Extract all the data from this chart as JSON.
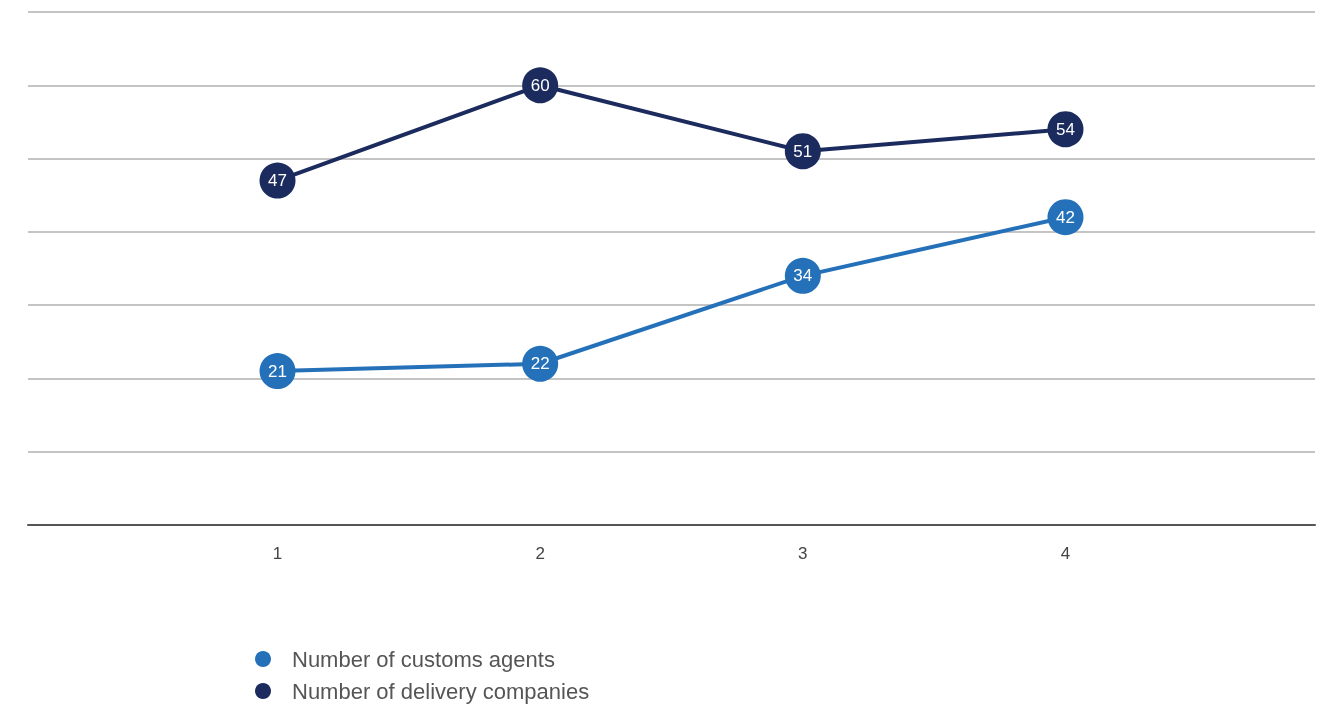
{
  "chart_data": {
    "type": "line",
    "x": [
      1,
      2,
      3,
      4
    ],
    "xlim": [
      0.05,
      4.95
    ],
    "xticks": [
      1,
      2,
      3,
      4
    ],
    "ylim": [
      0,
      70
    ],
    "yticks": [
      {
        "value": 0,
        "label": null
      },
      {
        "value": 10,
        "label": null
      },
      {
        "value": 20,
        "label": null
      },
      {
        "value": 30,
        "label": null
      },
      {
        "value": 40,
        "label": null
      },
      {
        "value": 50,
        "label": null
      },
      {
        "value": 60,
        "label": null
      },
      {
        "value": 70,
        "label": null
      }
    ],
    "tick_labels": "x",
    "series": [
      {
        "name": "Number of customs agents",
        "color": "#2471b9",
        "values": [
          21,
          22,
          34,
          42
        ]
      },
      {
        "name": "Number of delivery companies",
        "color": "#1c2b5e",
        "values": [
          47,
          60,
          51,
          54
        ]
      }
    ],
    "data_labels": true,
    "marker": "circle",
    "line_style": "solid",
    "grid": "y",
    "legend": "bottom left"
  }
}
